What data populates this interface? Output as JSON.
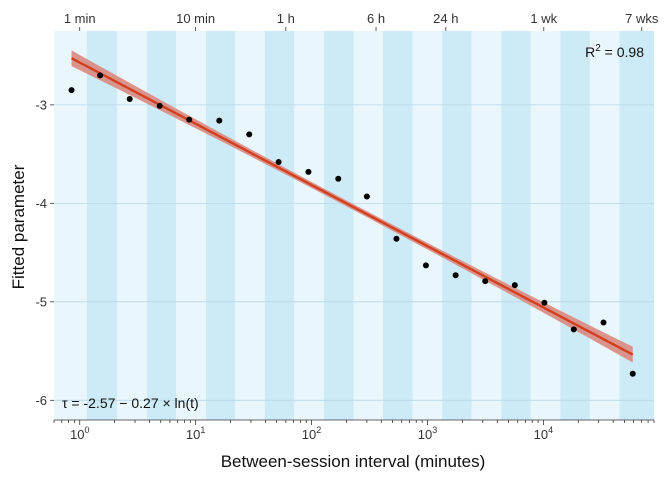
{
  "chart_data": {
    "type": "scatter",
    "title": "",
    "xlabel": "Between-session interval (minutes)",
    "ylabel": "Fitted parameter",
    "x_scale": "log10",
    "xlim": [
      0.6,
      90000
    ],
    "ylim": [
      -6.2,
      -2.25
    ],
    "grid": "horizontal",
    "x_ticks": [
      {
        "value": 1,
        "base": "10",
        "exp": "0"
      },
      {
        "value": 10,
        "base": "10",
        "exp": "1"
      },
      {
        "value": 100,
        "base": "10",
        "exp": "2"
      },
      {
        "value": 1000,
        "base": "10",
        "exp": "3"
      },
      {
        "value": 10000,
        "base": "10",
        "exp": "4"
      }
    ],
    "y_ticks": [
      {
        "value": -3,
        "label": "-3"
      },
      {
        "value": -4,
        "label": "-4"
      },
      {
        "value": -5,
        "label": "-5"
      },
      {
        "value": -6,
        "label": "-6"
      }
    ],
    "top_axis_ticks": [
      {
        "value": 1,
        "label": "1 min"
      },
      {
        "value": 10,
        "label": "10 min"
      },
      {
        "value": 60,
        "label": "1 h"
      },
      {
        "value": 360,
        "label": "6 h"
      },
      {
        "value": 1440,
        "label": "24 h"
      },
      {
        "value": 10080,
        "label": "1 wk"
      },
      {
        "value": 70560,
        "label": "7 wks"
      }
    ],
    "points": [
      {
        "x": 0.85,
        "y": -2.85
      },
      {
        "x": 1.5,
        "y": -2.7
      },
      {
        "x": 2.7,
        "y": -2.94
      },
      {
        "x": 4.9,
        "y": -3.01
      },
      {
        "x": 8.8,
        "y": -3.15
      },
      {
        "x": 16,
        "y": -3.16
      },
      {
        "x": 29,
        "y": -3.3
      },
      {
        "x": 52,
        "y": -3.58
      },
      {
        "x": 94,
        "y": -3.68
      },
      {
        "x": 170,
        "y": -3.75
      },
      {
        "x": 300,
        "y": -3.93
      },
      {
        "x": 540,
        "y": -4.36
      },
      {
        "x": 970,
        "y": -4.63
      },
      {
        "x": 1750,
        "y": -4.73
      },
      {
        "x": 3150,
        "y": -4.79
      },
      {
        "x": 5670,
        "y": -4.83
      },
      {
        "x": 10200,
        "y": -5.01
      },
      {
        "x": 18300,
        "y": -5.28
      },
      {
        "x": 33000,
        "y": -5.21
      },
      {
        "x": 59000,
        "y": -5.73
      }
    ],
    "fit_line": {
      "intercept": -2.57,
      "slope_ln": -0.27,
      "x_start": 0.85,
      "x_end": 59000,
      "ci_start": 0.08,
      "ci_mid": 0.03
    },
    "band_bounds": [
      0.6,
      1.15,
      2.1,
      3.8,
      6.8,
      12.3,
      22,
      39.5,
      71,
      128,
      230,
      413,
      743,
      1340,
      2410,
      4330,
      7800,
      14000,
      25200,
      45400,
      90000
    ],
    "colors": {
      "band_dark": "#cdeaf7",
      "band_light": "#e9f6fc",
      "fit_line": "#d2401f",
      "ci_fill": "#d9897f",
      "point": "#000000",
      "grid": "#b9d7e6"
    },
    "annotations": {
      "r_squared": {
        "base": "R",
        "sup": "2",
        "rest": " = 0.98"
      },
      "equation": "τ = -2.57 − 0.27 × ln(t)"
    }
  }
}
